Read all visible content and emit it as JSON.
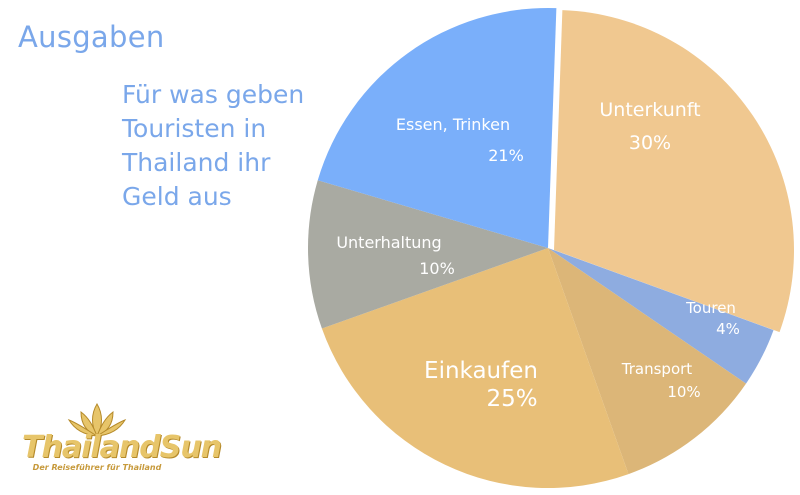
{
  "chart_data": {
    "type": "pie",
    "title": "Ausgaben",
    "subtitle": "Für was geben Touristen in Thailand ihr Geld aus",
    "slices": [
      {
        "label": "Unterkunft",
        "value": 30,
        "value_label": "30%",
        "color": "#f0c890"
      },
      {
        "label": "Touren",
        "value": 4,
        "value_label": "4%",
        "color": "#8eace0"
      },
      {
        "label": "Transport",
        "value": 10,
        "value_label": "10%",
        "color": "#dcb678"
      },
      {
        "label": "Einkaufen",
        "value": 25,
        "value_label": "25%",
        "color": "#e8bf78"
      },
      {
        "label": "Unterhaltung",
        "value": 10,
        "value_label": "10%",
        "color": "#a9aaa2"
      },
      {
        "label": "Essen, Trinken",
        "value": 21,
        "value_label": "21%",
        "color": "#7aaffa"
      }
    ]
  },
  "logo": {
    "name": "ThailandSun",
    "tagline": "Der Reiseführer für Thailand",
    "colors": {
      "gold": "#e7c56a",
      "dark_gold": "#b58a2a"
    }
  }
}
